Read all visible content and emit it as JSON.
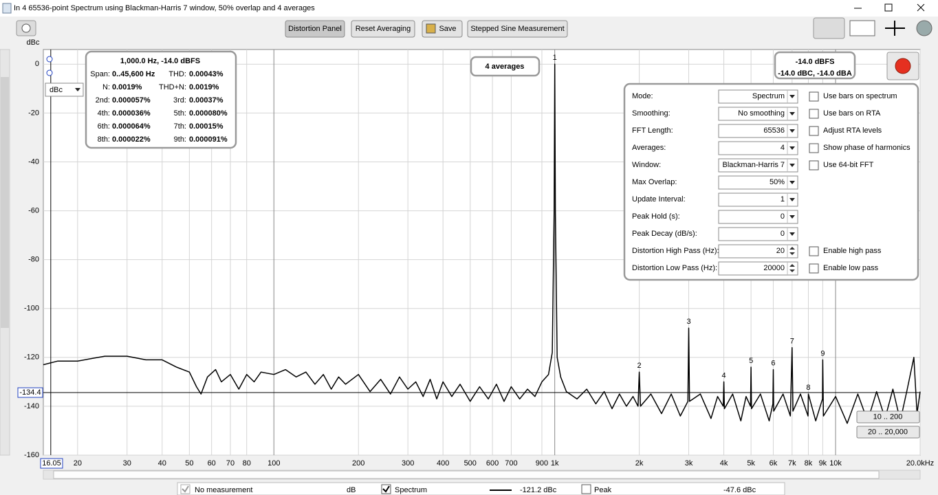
{
  "window": {
    "title": "In 4 65536-point Spectrum using Blackman-Harris 7 window, 50% overlap and 4 averages"
  },
  "toolbar": {
    "buttons": [
      "Distortion Panel",
      "Reset Averaging",
      "Save",
      "Stepped Sine Measurement"
    ]
  },
  "unit_selector": "dBc",
  "info_panel": {
    "header": "1,000.0 Hz, -14.0 dBFS",
    "rows": [
      [
        "Span:",
        "0..45,600 Hz",
        "THD:",
        "0.00043%"
      ],
      [
        "N:",
        "0.0019%",
        "THD+N:",
        "0.0019%"
      ],
      [
        "2nd:",
        "0.000057%",
        "3rd:",
        "0.00037%"
      ],
      [
        "4th:",
        "0.000036%",
        "5th:",
        "0.000080%"
      ],
      [
        "6th:",
        "0.000064%",
        "7th:",
        "0.00015%"
      ],
      [
        "8th:",
        "0.000022%",
        "9th:",
        "0.000091%"
      ]
    ]
  },
  "averages_box": "4 averages",
  "level_box": {
    "main": "-14.0 dBFS",
    "sub": "-14.0 dBC, -14.0 dBA"
  },
  "settings": {
    "fields": [
      {
        "label": "Mode:",
        "value": "Spectrum"
      },
      {
        "label": "Smoothing:",
        "value": "No  smoothing"
      },
      {
        "label": "FFT Length:",
        "value": "65536"
      },
      {
        "label": "Averages:",
        "value": "4"
      },
      {
        "label": "Window:",
        "value": "Blackman-Harris 7"
      },
      {
        "label": "Max Overlap:",
        "value": "50%"
      },
      {
        "label": "Update Interval:",
        "value": "1"
      },
      {
        "label": "Peak Hold (s):",
        "value": "0"
      },
      {
        "label": "Peak Decay (dB/s):",
        "value": "0"
      },
      {
        "label": "Distortion High Pass (Hz):",
        "value": "20"
      },
      {
        "label": "Distortion Low Pass (Hz):",
        "value": "20000"
      }
    ],
    "checkboxes": [
      {
        "label": "Use bars on spectrum",
        "checked": false
      },
      {
        "label": "Use bars on RTA",
        "checked": false
      },
      {
        "label": "Adjust RTA levels",
        "checked": false
      },
      {
        "label": "Show phase of harmonics",
        "checked": false
      },
      {
        "label": "Use 64-bit FFT",
        "checked": false
      },
      {
        "label": "Enable high pass",
        "checked": false
      },
      {
        "label": "Enable low pass",
        "checked": false
      }
    ]
  },
  "zoom_buttons": [
    "10 .. 200",
    "20 .. 20,000"
  ],
  "legend": [
    {
      "name": "No measurement",
      "unit": "dB",
      "checked": true
    },
    {
      "name": "Spectrum",
      "value": "-121.2 dBc",
      "checked": true
    },
    {
      "name": "Peak",
      "value": "-47.6 dBc",
      "checked": false
    }
  ],
  "chart_data": {
    "type": "line",
    "y_label": "dBc",
    "x_scale": "log",
    "grid": true,
    "xlim": [
      15.1,
      20000
    ],
    "ylim": [
      -160,
      6
    ],
    "yticks": [
      0,
      -20,
      -40,
      -60,
      -80,
      -100,
      -120,
      -140,
      -160
    ],
    "xticks": [
      20,
      30,
      40,
      50,
      60,
      70,
      80,
      100,
      200,
      300,
      400,
      500,
      600,
      700,
      900,
      {
        "value": 1000,
        "label": "1k"
      },
      {
        "value": 2000,
        "label": "2k"
      },
      {
        "value": 3000,
        "label": "3k"
      },
      {
        "value": 4000,
        "label": "4k"
      },
      {
        "value": 5000,
        "label": "5k"
      },
      {
        "value": 6000,
        "label": "6k"
      },
      {
        "value": 7000,
        "label": "7k"
      },
      {
        "value": 8000,
        "label": "8k"
      },
      {
        "value": 9000,
        "label": "9k"
      },
      {
        "value": 10000,
        "label": "10k"
      },
      {
        "value": 20000,
        "label": "20.0kHz"
      }
    ],
    "cursor": {
      "x": 16.05,
      "y": -134.4
    },
    "series": [
      {
        "name": "Spectrum",
        "color": "#000000",
        "x": [
          15.1,
          17,
          20,
          25,
          30,
          35,
          40,
          45,
          50,
          53,
          55,
          58,
          62,
          65,
          70,
          75,
          80,
          85,
          90,
          100,
          110,
          120,
          130,
          140,
          150,
          160,
          170,
          180,
          200,
          220,
          240,
          260,
          280,
          300,
          320,
          340,
          360,
          380,
          400,
          430,
          460,
          500,
          540,
          580,
          620,
          660,
          700,
          750,
          800,
          850,
          900,
          950,
          980,
          995,
          1000,
          1005,
          1020,
          1050,
          1100,
          1200,
          1300,
          1400,
          1500,
          1600,
          1700,
          1800,
          1900,
          1980,
          2000,
          2020,
          2200,
          2400,
          2600,
          2800,
          2980,
          3000,
          3020,
          3300,
          3600,
          3800,
          3980,
          4000,
          4020,
          4300,
          4600,
          4800,
          4980,
          5000,
          5020,
          5400,
          5800,
          5980,
          6000,
          6020,
          6500,
          6900,
          7000,
          7050,
          7500,
          7980,
          8000,
          8500,
          8980,
          9000,
          9050,
          10000,
          11000,
          12000,
          13000,
          14000,
          15000,
          16000,
          17000,
          18000,
          19000,
          19500,
          20000
        ],
        "values": [
          -123,
          -121.5,
          -121.5,
          -119.5,
          -119.5,
          -121,
          -121,
          -124,
          -126,
          -132,
          -135,
          -128,
          -125,
          -130,
          -127,
          -133,
          -127,
          -130,
          -126,
          -127,
          -125,
          -128,
          -126,
          -131,
          -127,
          -133,
          -128,
          -131,
          -127,
          -134,
          -129,
          -135,
          -128,
          -133,
          -130,
          -136,
          -129,
          -137,
          -130,
          -136,
          -131,
          -138,
          -132,
          -137,
          -131,
          -138,
          -132,
          -137,
          -133,
          -136,
          -130,
          -127,
          -118,
          -60,
          0,
          -60,
          -120,
          -128,
          -134,
          -137,
          -133,
          -139,
          -134,
          -141,
          -135,
          -140,
          -136,
          -140,
          -126,
          -140,
          -135,
          -143,
          -135,
          -144,
          -138,
          -108,
          -138,
          -135,
          -145,
          -136,
          -140,
          -130,
          -141,
          -135,
          -146,
          -136,
          -140,
          -124,
          -141,
          -135,
          -146,
          -139,
          -125,
          -142,
          -135,
          -144,
          -116,
          -142,
          -135,
          -144,
          -135,
          -146,
          -137,
          -121,
          -144,
          -136,
          -147,
          -135,
          -146,
          -134,
          -145,
          -133,
          -146,
          -133,
          -120,
          -143,
          -134
        ]
      }
    ],
    "annotations": [
      {
        "text": "1",
        "x": 1000,
        "y": 0
      },
      {
        "text": "2",
        "x": 2000,
        "y": -126
      },
      {
        "text": "3",
        "x": 3000,
        "y": -108
      },
      {
        "text": "4",
        "x": 4000,
        "y": -130
      },
      {
        "text": "5",
        "x": 5000,
        "y": -124
      },
      {
        "text": "6",
        "x": 6000,
        "y": -125
      },
      {
        "text": "7",
        "x": 7000,
        "y": -116
      },
      {
        "text": "8",
        "x": 8000,
        "y": -135
      },
      {
        "text": "9",
        "x": 9000,
        "y": -121
      }
    ]
  }
}
